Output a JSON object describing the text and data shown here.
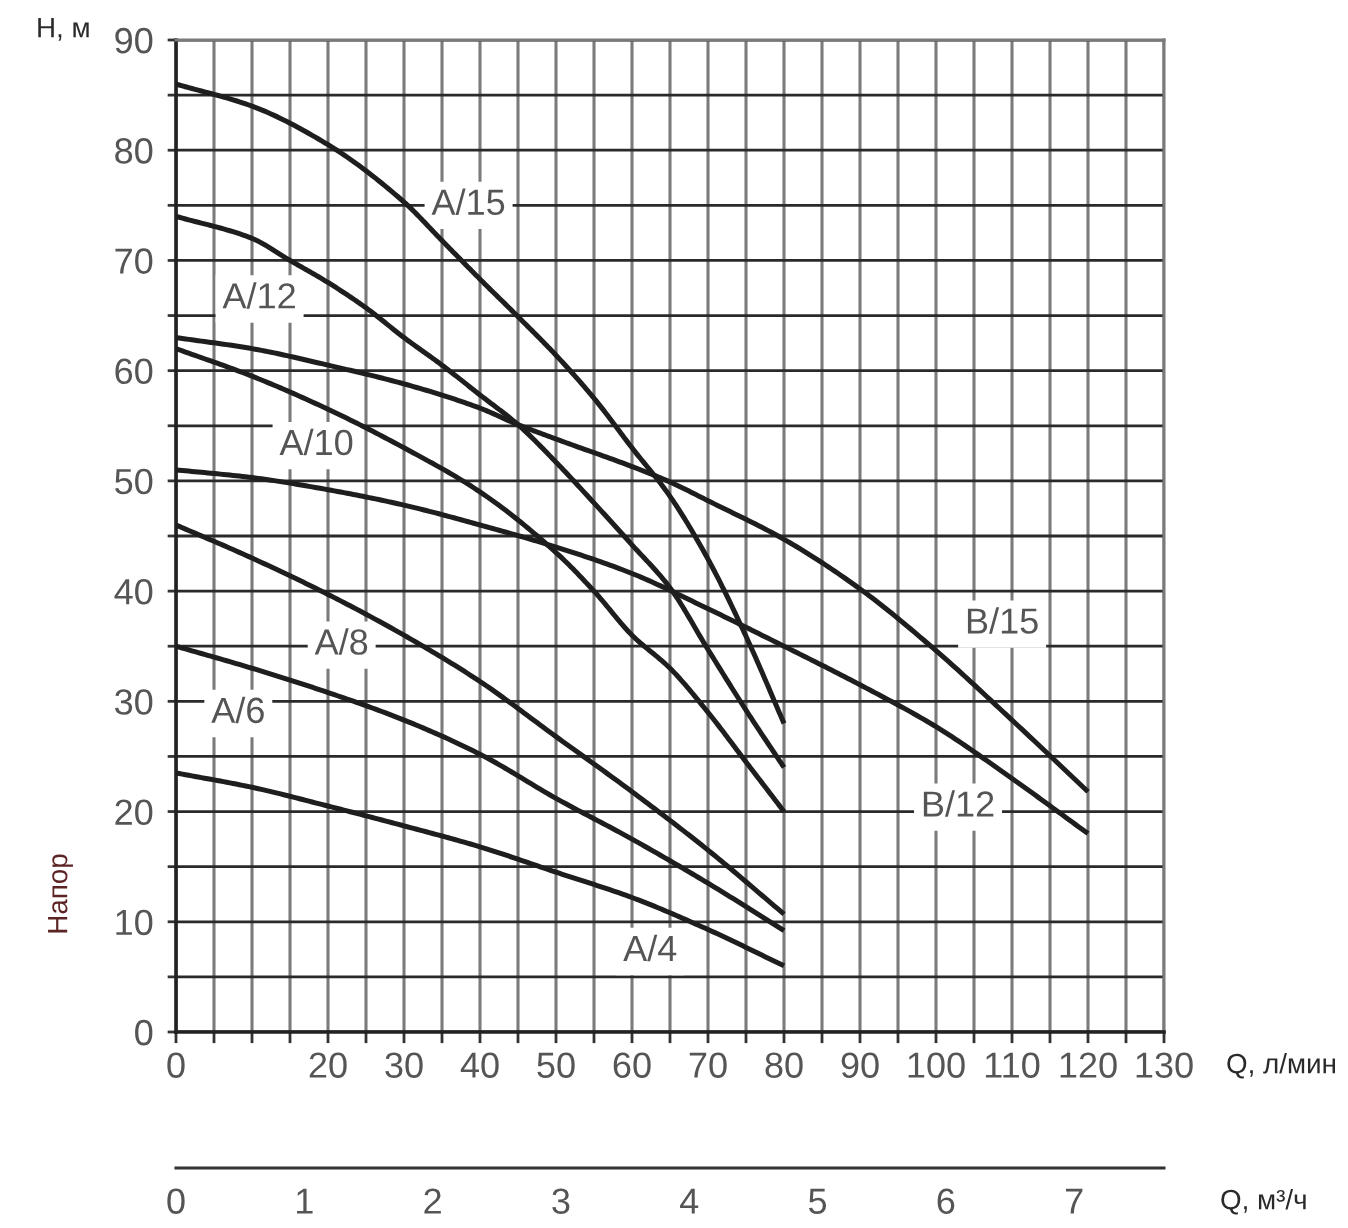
{
  "chart_data": {
    "type": "line",
    "xlabel": "Q, л/мин",
    "ylabel": "Напор",
    "x2label": "Q, м³/ч",
    "annotations": [
      "H, м"
    ],
    "series": [
      {
        "name": "A/15",
        "color": "#1e1e1e",
        "x": [
          0,
          10,
          20,
          30,
          35,
          40,
          45,
          50,
          55,
          60,
          65,
          70,
          75,
          80
        ],
        "values": [
          86,
          84,
          80.5,
          75.3,
          71.8,
          68.3,
          64.9,
          61.4,
          57.5,
          53,
          48.6,
          42.9,
          35.9,
          28
        ]
      },
      {
        "name": "A/12",
        "color": "#1e1e1e",
        "x": [
          0,
          10,
          15,
          20,
          25,
          30,
          35,
          40,
          45,
          50,
          55,
          60,
          65,
          70,
          75,
          80
        ],
        "values": [
          74,
          72,
          70,
          68,
          65.7,
          63,
          60.5,
          57.8,
          55.1,
          51.7,
          48,
          44.2,
          40.3,
          34.7,
          29.2,
          24
        ]
      },
      {
        "name": "A/10",
        "color": "#1e1e1e",
        "x": [
          0,
          10,
          20,
          30,
          40,
          50,
          55,
          60,
          65,
          70,
          75,
          80
        ],
        "values": [
          62,
          59.5,
          56.5,
          53,
          49,
          43.5,
          40,
          36,
          33,
          29,
          24.5,
          20
        ]
      },
      {
        "name": "A/8",
        "color": "#1e1e1e",
        "x": [
          0,
          10,
          20,
          30,
          40,
          50,
          60,
          70,
          80
        ],
        "values": [
          46,
          43,
          39.7,
          36,
          31.8,
          26.8,
          21.8,
          16.5,
          10.7
        ]
      },
      {
        "name": "A/6",
        "color": "#1e1e1e",
        "x": [
          0,
          10,
          20,
          30,
          40,
          50,
          60,
          70,
          80
        ],
        "values": [
          35,
          33,
          30.8,
          28.3,
          25.2,
          21.2,
          17.5,
          13.5,
          9.2
        ]
      },
      {
        "name": "A/4",
        "color": "#1e1e1e",
        "x": [
          0,
          10,
          20,
          30,
          40,
          50,
          60,
          70,
          80
        ],
        "values": [
          23.5,
          22.2,
          20.5,
          18.7,
          16.8,
          14.5,
          12.2,
          9.3,
          6
        ]
      },
      {
        "name": "B/15",
        "color": "#1e1e1e",
        "x": [
          0,
          10,
          20,
          30,
          40,
          45,
          50,
          60,
          65,
          70,
          80,
          90,
          100,
          110,
          120
        ],
        "values": [
          63,
          62,
          60.5,
          58.8,
          56.6,
          55.1,
          53.8,
          51.3,
          49.9,
          48.2,
          44.7,
          40.2,
          34.6,
          28.3,
          21.8
        ]
      },
      {
        "name": "B/12",
        "color": "#1e1e1e",
        "x": [
          0,
          10,
          20,
          30,
          40,
          50,
          60,
          70,
          80,
          90,
          100,
          110,
          120
        ],
        "values": [
          51,
          50.3,
          49.2,
          47.8,
          46,
          44,
          41.6,
          38.4,
          35,
          31.5,
          27.7,
          23,
          18
        ]
      }
    ],
    "xlim": [
      0,
      130
    ],
    "xticks": [
      0,
      {
        "value": 5,
        "label": null
      },
      {
        "value": 10,
        "label": null
      },
      {
        "value": 15,
        "label": null
      },
      20,
      {
        "value": 25,
        "label": null
      },
      30,
      {
        "value": 35,
        "label": null
      },
      40,
      {
        "value": 45,
        "label": null
      },
      50,
      {
        "value": 55,
        "label": null
      },
      60,
      {
        "value": 65,
        "label": null
      },
      70,
      {
        "value": 75,
        "label": null
      },
      80,
      {
        "value": 85,
        "label": null
      },
      90,
      {
        "value": 95,
        "label": null
      },
      100,
      {
        "value": 105,
        "label": null
      },
      110,
      {
        "value": 115,
        "label": null
      },
      120,
      {
        "value": 125,
        "label": null
      },
      130
    ],
    "ylim": [
      0,
      90
    ],
    "yticks": [
      0,
      {
        "value": 5,
        "label": null
      },
      10,
      {
        "value": 15,
        "label": null
      },
      20,
      {
        "value": 25,
        "label": null
      },
      30,
      {
        "value": 35,
        "label": null
      },
      40,
      {
        "value": 45,
        "label": null
      },
      50,
      {
        "value": 55,
        "label": null
      },
      60,
      {
        "value": 65,
        "label": null
      },
      70,
      {
        "value": 75,
        "label": null
      },
      80,
      {
        "value": 85,
        "label": null
      },
      90
    ],
    "x2lim": [
      0,
      7.7
    ],
    "x2ticks": [
      0,
      1,
      2,
      3,
      4,
      5,
      6,
      7
    ],
    "grid": true
  }
}
